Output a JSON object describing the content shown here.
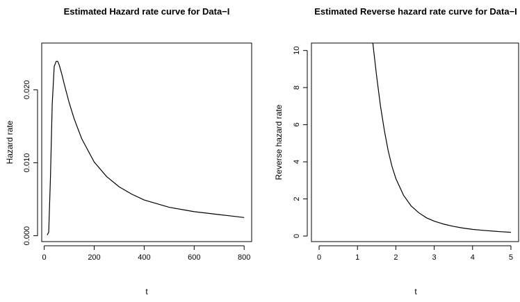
{
  "chart_data": [
    {
      "type": "line",
      "title": "Estimated Hazard rate curve for Data−I",
      "xlabel": "t",
      "ylabel": "Hazard rate",
      "xlim": [
        -10,
        830
      ],
      "ylim": [
        -0.0008,
        0.0264
      ],
      "x_ticks": [
        "0",
        "200",
        "400",
        "600",
        "800"
      ],
      "y_ticks": [
        "0.000",
        "0.010",
        "0.020"
      ],
      "grid": false,
      "series": [
        {
          "x": [
            12,
            18,
            25,
            32,
            40,
            48,
            54,
            60,
            70,
            80,
            100,
            120,
            150,
            200,
            250,
            300,
            350,
            400,
            450,
            500,
            550,
            600,
            650,
            700,
            750,
            800
          ],
          "y": [
            0.0001,
            0.0005,
            0.008,
            0.018,
            0.0232,
            0.0239,
            0.0239,
            0.0234,
            0.0222,
            0.0208,
            0.0182,
            0.016,
            0.0133,
            0.0101,
            0.0081,
            0.0067,
            0.0057,
            0.0049,
            0.0044,
            0.0039,
            0.0036,
            0.0033,
            0.0031,
            0.0029,
            0.0027,
            0.0025
          ]
        }
      ]
    },
    {
      "type": "line",
      "title": "Estimated Reverse hazard rate curve for Data−I",
      "xlabel": "t",
      "ylabel": "Reverse hazard rate",
      "xlim": [
        -0.2,
        5.2
      ],
      "ylim": [
        -0.3,
        10.4
      ],
      "x_ticks": [
        "0",
        "1",
        "2",
        "3",
        "4",
        "5"
      ],
      "y_ticks": [
        "0",
        "2",
        "4",
        "6",
        "8",
        "10"
      ],
      "grid": false,
      "series": [
        {
          "x": [
            1.4,
            1.5,
            1.6,
            1.7,
            1.8,
            1.9,
            2.0,
            2.2,
            2.4,
            2.6,
            2.8,
            3.0,
            3.25,
            3.5,
            3.75,
            4.0,
            4.25,
            4.5,
            4.75,
            5.0
          ],
          "y": [
            10.4,
            8.6,
            7.0,
            5.7,
            4.6,
            3.75,
            3.1,
            2.2,
            1.62,
            1.25,
            0.98,
            0.8,
            0.64,
            0.52,
            0.43,
            0.36,
            0.31,
            0.27,
            0.23,
            0.2
          ]
        }
      ]
    }
  ]
}
